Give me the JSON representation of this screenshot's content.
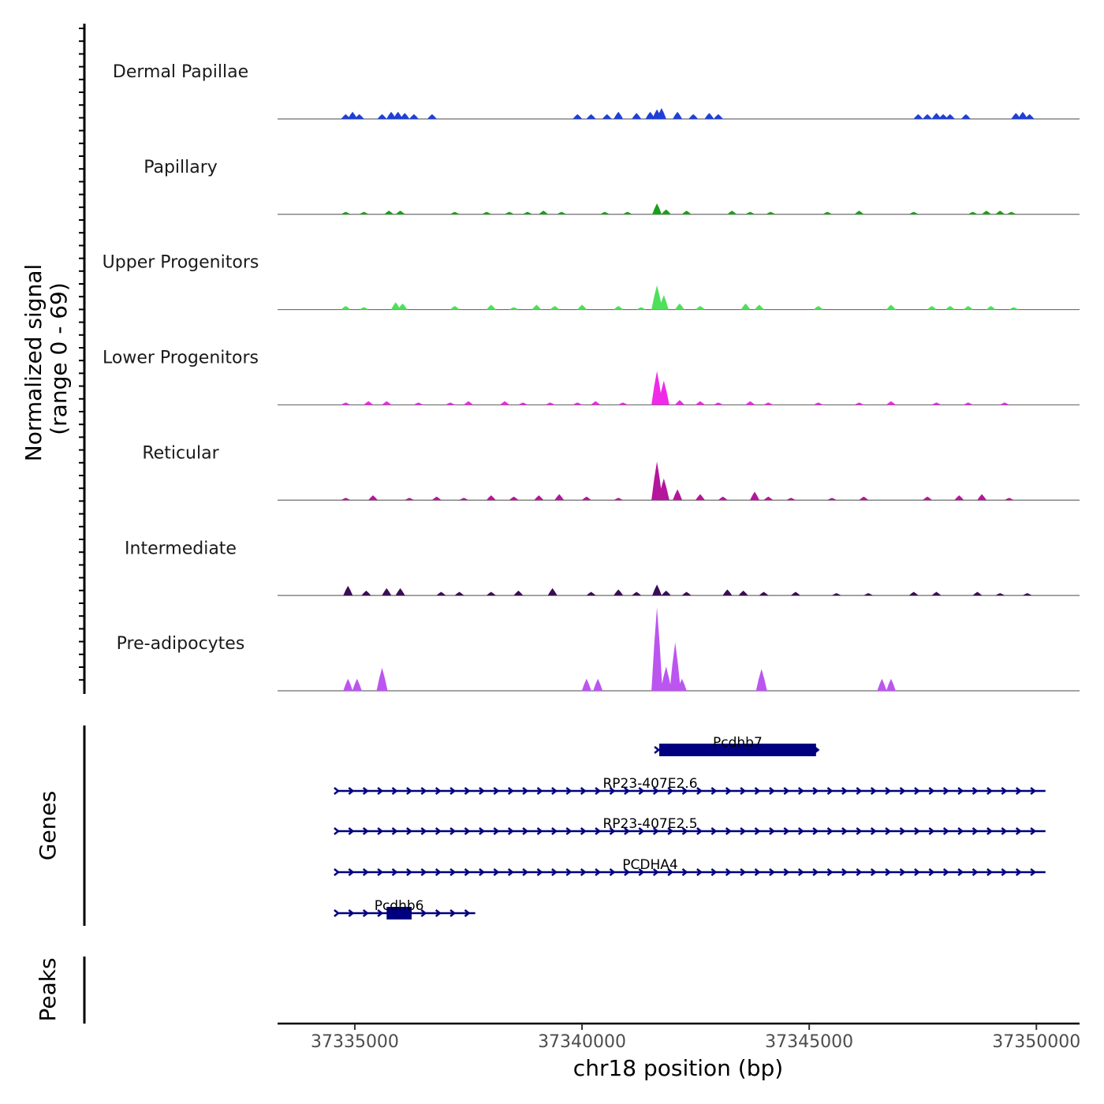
{
  "chart_data": {
    "type": "area",
    "chromosome": "chr18",
    "xlabel": "chr18 position (bp)",
    "xlim": [
      37333300,
      37350950
    ],
    "x_ticks": [
      37335000,
      37340000,
      37345000,
      37350000
    ],
    "x_tick_labels": [
      "37335000",
      "37340000",
      "37345000",
      "37350000"
    ],
    "ylabel_line1": "Normalized signal",
    "ylabel_line2": "(range 0 - 69)",
    "ylim": [
      0,
      69
    ],
    "signal_tracks": [
      {
        "name": "Dermal Papillae",
        "color": "#1f3fd6",
        "peaks": [
          [
            37334800,
            4
          ],
          [
            37334950,
            6
          ],
          [
            37335100,
            4
          ],
          [
            37335600,
            4
          ],
          [
            37335800,
            6
          ],
          [
            37335950,
            6
          ],
          [
            37336100,
            5
          ],
          [
            37336300,
            4
          ],
          [
            37336700,
            4
          ],
          [
            37339900,
            4
          ],
          [
            37340200,
            4
          ],
          [
            37340550,
            4
          ],
          [
            37340800,
            6
          ],
          [
            37341200,
            5
          ],
          [
            37341500,
            6
          ],
          [
            37341650,
            8
          ],
          [
            37341750,
            9
          ],
          [
            37342100,
            6
          ],
          [
            37342450,
            4
          ],
          [
            37342800,
            5
          ],
          [
            37343000,
            4
          ],
          [
            37347400,
            4
          ],
          [
            37347600,
            4
          ],
          [
            37347800,
            5
          ],
          [
            37347950,
            4
          ],
          [
            37348100,
            4
          ],
          [
            37348450,
            4
          ],
          [
            37349550,
            5
          ],
          [
            37349700,
            6
          ],
          [
            37349850,
            4
          ]
        ]
      },
      {
        "name": "Papillary",
        "color": "#1aa01a",
        "peaks": [
          [
            37334800,
            2
          ],
          [
            37335200,
            2
          ],
          [
            37335750,
            3
          ],
          [
            37336000,
            3
          ],
          [
            37337200,
            2
          ],
          [
            37337900,
            2
          ],
          [
            37338400,
            2
          ],
          [
            37338800,
            2
          ],
          [
            37339150,
            3
          ],
          [
            37339550,
            2
          ],
          [
            37340500,
            2
          ],
          [
            37341000,
            2
          ],
          [
            37341650,
            9
          ],
          [
            37341850,
            4
          ],
          [
            37342300,
            3
          ],
          [
            37343300,
            3
          ],
          [
            37343700,
            2
          ],
          [
            37344150,
            2
          ],
          [
            37345400,
            2
          ],
          [
            37346100,
            3
          ],
          [
            37347300,
            2
          ],
          [
            37348600,
            2
          ],
          [
            37348900,
            3
          ],
          [
            37349200,
            3
          ],
          [
            37349450,
            2
          ]
        ]
      },
      {
        "name": "Upper Progenitors",
        "color": "#4ee05a",
        "peaks": [
          [
            37334800,
            3
          ],
          [
            37335200,
            2
          ],
          [
            37335900,
            6
          ],
          [
            37336050,
            5
          ],
          [
            37337200,
            3
          ],
          [
            37338000,
            4
          ],
          [
            37338500,
            2
          ],
          [
            37339000,
            4
          ],
          [
            37339400,
            3
          ],
          [
            37340000,
            4
          ],
          [
            37340800,
            3
          ],
          [
            37341300,
            2
          ],
          [
            37341650,
            20
          ],
          [
            37341800,
            12
          ],
          [
            37342150,
            5
          ],
          [
            37342600,
            3
          ],
          [
            37343600,
            5
          ],
          [
            37343900,
            4
          ],
          [
            37345200,
            3
          ],
          [
            37346800,
            4
          ],
          [
            37347700,
            3
          ],
          [
            37348100,
            3
          ],
          [
            37348500,
            3
          ],
          [
            37349000,
            3
          ],
          [
            37349500,
            2
          ]
        ]
      },
      {
        "name": "Lower Progenitors",
        "color": "#f02ae8",
        "peaks": [
          [
            37334800,
            2
          ],
          [
            37335300,
            3
          ],
          [
            37335700,
            3
          ],
          [
            37336400,
            2
          ],
          [
            37337100,
            2
          ],
          [
            37337500,
            3
          ],
          [
            37338300,
            3
          ],
          [
            37338700,
            2
          ],
          [
            37339300,
            2
          ],
          [
            37339900,
            2
          ],
          [
            37340300,
            3
          ],
          [
            37340900,
            2
          ],
          [
            37341650,
            28
          ],
          [
            37341800,
            20
          ],
          [
            37342150,
            4
          ],
          [
            37342600,
            3
          ],
          [
            37343000,
            2
          ],
          [
            37343700,
            3
          ],
          [
            37344100,
            2
          ],
          [
            37345200,
            2
          ],
          [
            37346100,
            2
          ],
          [
            37346800,
            3
          ],
          [
            37347800,
            2
          ],
          [
            37348500,
            2
          ],
          [
            37349300,
            2
          ]
        ]
      },
      {
        "name": "Reticular",
        "color": "#b4169c",
        "peaks": [
          [
            37334800,
            2
          ],
          [
            37335400,
            4
          ],
          [
            37336200,
            2
          ],
          [
            37336800,
            3
          ],
          [
            37337400,
            2
          ],
          [
            37338000,
            4
          ],
          [
            37338500,
            3
          ],
          [
            37339050,
            4
          ],
          [
            37339500,
            5
          ],
          [
            37340100,
            3
          ],
          [
            37340800,
            2
          ],
          [
            37341650,
            32
          ],
          [
            37341800,
            18
          ],
          [
            37342100,
            9
          ],
          [
            37342600,
            5
          ],
          [
            37343100,
            3
          ],
          [
            37343800,
            7
          ],
          [
            37344100,
            3
          ],
          [
            37344600,
            2
          ],
          [
            37345500,
            2
          ],
          [
            37346200,
            3
          ],
          [
            37347600,
            3
          ],
          [
            37348300,
            4
          ],
          [
            37348800,
            5
          ],
          [
            37349400,
            2
          ]
        ]
      },
      {
        "name": "Intermediate",
        "color": "#3a0e54",
        "peaks": [
          [
            37334850,
            8
          ],
          [
            37335250,
            4
          ],
          [
            37335700,
            6
          ],
          [
            37336000,
            6
          ],
          [
            37336900,
            3
          ],
          [
            37337300,
            3
          ],
          [
            37338000,
            3
          ],
          [
            37338600,
            4
          ],
          [
            37339350,
            6
          ],
          [
            37340200,
            3
          ],
          [
            37340800,
            5
          ],
          [
            37341200,
            3
          ],
          [
            37341650,
            9
          ],
          [
            37341850,
            4
          ],
          [
            37342300,
            3
          ],
          [
            37343200,
            5
          ],
          [
            37343550,
            4
          ],
          [
            37344000,
            3
          ],
          [
            37344700,
            3
          ],
          [
            37345600,
            2
          ],
          [
            37346300,
            2
          ],
          [
            37347300,
            3
          ],
          [
            37347800,
            3
          ],
          [
            37348700,
            3
          ],
          [
            37349200,
            2
          ],
          [
            37349800,
            2
          ]
        ]
      },
      {
        "name": "Pre-adipocytes",
        "color": "#bb55f0",
        "peaks": [
          [
            37334850,
            10
          ],
          [
            37335050,
            10
          ],
          [
            37335600,
            19
          ],
          [
            37340100,
            10
          ],
          [
            37340350,
            10
          ],
          [
            37341650,
            69
          ],
          [
            37341850,
            20
          ],
          [
            37342050,
            40
          ],
          [
            37342200,
            10
          ],
          [
            37343950,
            18
          ],
          [
            37346600,
            10
          ],
          [
            37346800,
            10
          ]
        ]
      }
    ],
    "genes_track": {
      "label": "Genes",
      "color": "#000080",
      "genes": [
        {
          "name": "Pcdhb7",
          "start": 37341650,
          "end": 37345200,
          "exon": [
            37341700,
            37345150
          ],
          "strand": "+"
        },
        {
          "name": "RP23-407E2.6",
          "start": 37334600,
          "end": 37350200,
          "exon": null,
          "strand": "+"
        },
        {
          "name": "RP23-407E2.5",
          "start": 37334600,
          "end": 37350200,
          "exon": null,
          "strand": "+"
        },
        {
          "name": "PCDHA4",
          "start": 37334600,
          "end": 37350200,
          "exon": null,
          "strand": "+"
        },
        {
          "name": "Pcdhb6",
          "start": 37334600,
          "end": 37337650,
          "exon": [
            37335700,
            37336250
          ],
          "strand": "+"
        }
      ]
    },
    "peaks_track": {
      "label": "Peaks",
      "peaks": []
    }
  }
}
